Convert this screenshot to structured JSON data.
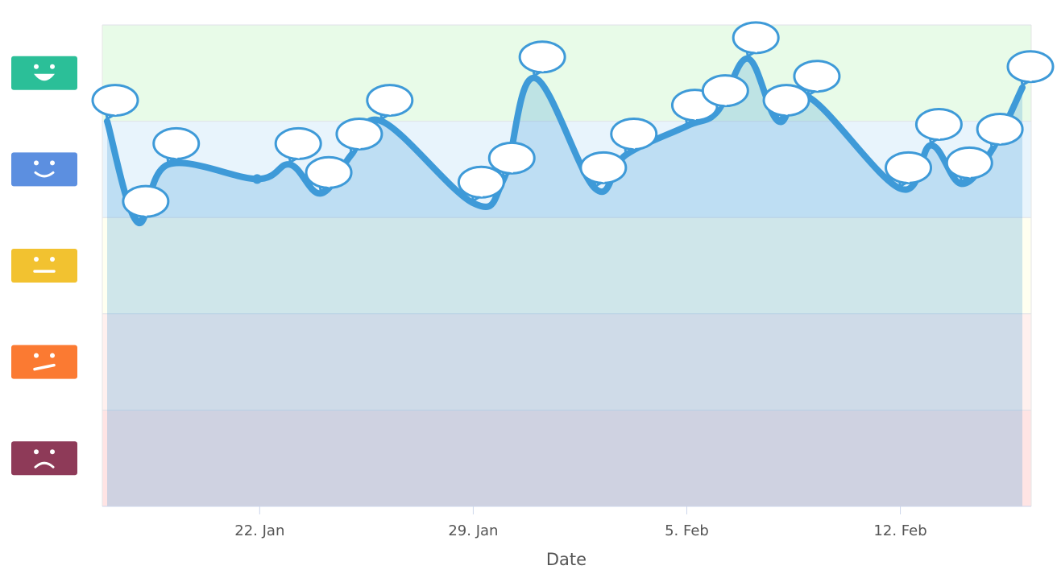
{
  "chart_data": {
    "type": "area",
    "title": "",
    "xlabel": "Date",
    "ylabel": "",
    "x_range": [
      "2022-01-17",
      "2022-02-19"
    ],
    "ylim": [
      0,
      5
    ],
    "y_scale": "mood level (1 = awful ... 5 = great)",
    "grid": true,
    "x_ticks": [
      {
        "date": "2022-01-22",
        "label": "22. Jan"
      },
      {
        "date": "2022-01-29",
        "label": "29. Jan"
      },
      {
        "date": "2022-02-05",
        "label": "5. Feb"
      },
      {
        "date": "2022-02-12",
        "label": "12. Feb"
      }
    ],
    "mood_bands": [
      {
        "level": 5,
        "name": "great",
        "from": 4,
        "to": 5,
        "fill": "#e8fbe8",
        "icon_color": "#2bbf98",
        "icon": "big-smile-icon"
      },
      {
        "level": 4,
        "name": "good",
        "from": 3,
        "to": 4,
        "fill": "#e8f4fc",
        "icon_color": "#5c8fe0",
        "icon": "smile-icon"
      },
      {
        "level": 3,
        "name": "meh",
        "from": 2,
        "to": 3,
        "fill": "#fffff0",
        "icon_color": "#f2c230",
        "icon": "neutral-face-icon"
      },
      {
        "level": 2,
        "name": "bad",
        "from": 1,
        "to": 2,
        "fill": "#fff0ee",
        "icon_color": "#fb7a32",
        "icon": "skeptical-face-icon"
      },
      {
        "level": 1,
        "name": "awful",
        "from": 0,
        "to": 1,
        "fill": "#ffe4e4",
        "icon_color": "#8e3a58",
        "icon": "frown-icon"
      }
    ],
    "colors": {
      "line": "#3e9ad8",
      "area": "#3e9ad8",
      "note_stroke": "#3e9ad8",
      "note_fill": "#ffffff"
    },
    "series": [
      {
        "points": [
          {
            "date": "2022-01-17T00:00",
            "value": 4.0,
            "note": true
          },
          {
            "date": "2022-01-18T00:00",
            "value": 2.95,
            "note": true
          },
          {
            "date": "2022-01-19T00:00",
            "value": 3.55,
            "note": true
          },
          {
            "date": "2022-01-21T22:00",
            "value": 3.4,
            "note": false
          },
          {
            "date": "2022-01-23T00:00",
            "value": 3.55,
            "note": true
          },
          {
            "date": "2022-01-24T00:00",
            "value": 3.25,
            "note": true
          },
          {
            "date": "2022-01-25T00:00",
            "value": 3.65,
            "note": true
          },
          {
            "date": "2022-01-26T00:00",
            "value": 4.0,
            "note": true
          },
          {
            "date": "2022-01-29T00:00",
            "value": 3.15,
            "note": true
          },
          {
            "date": "2022-01-30T00:00",
            "value": 3.4,
            "note": true
          },
          {
            "date": "2022-01-31T00:00",
            "value": 4.45,
            "note": true
          },
          {
            "date": "2022-02-02T00:00",
            "value": 3.3,
            "note": true
          },
          {
            "date": "2022-02-03T00:00",
            "value": 3.65,
            "note": true
          },
          {
            "date": "2022-02-05T00:00",
            "value": 3.95,
            "note": true
          },
          {
            "date": "2022-02-06T00:00",
            "value": 4.1,
            "note": true
          },
          {
            "date": "2022-02-07T00:00",
            "value": 4.65,
            "note": true
          },
          {
            "date": "2022-02-08T00:00",
            "value": 4.0,
            "note": true
          },
          {
            "date": "2022-02-09T00:00",
            "value": 4.25,
            "note": true
          },
          {
            "date": "2022-02-12T00:00",
            "value": 3.3,
            "note": true
          },
          {
            "date": "2022-02-13T00:00",
            "value": 3.75,
            "note": true
          },
          {
            "date": "2022-02-14T00:00",
            "value": 3.35,
            "note": true
          },
          {
            "date": "2022-02-15T00:00",
            "value": 3.7,
            "note": true
          },
          {
            "date": "2022-02-16T00:00",
            "value": 4.35,
            "note": true
          }
        ]
      }
    ]
  }
}
